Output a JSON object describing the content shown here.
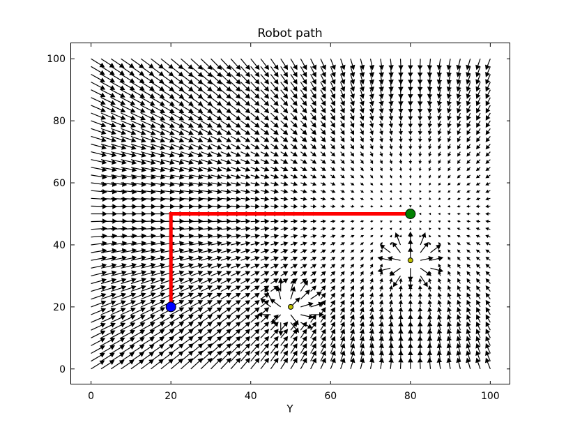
{
  "chart_data": {
    "type": "quiver",
    "title": "Robot path",
    "xlabel": "Y",
    "ylabel": "",
    "xlim": [
      -5,
      105
    ],
    "ylim": [
      -5,
      105
    ],
    "xticks": [
      "0",
      "20",
      "40",
      "60",
      "80",
      "100"
    ],
    "yticks": [
      "0",
      "20",
      "40",
      "60",
      "80",
      "100"
    ],
    "grid": false,
    "legend": "none",
    "vector_field": {
      "grid_x": {
        "start": 0,
        "stop": 100,
        "step": 2.5
      },
      "grid_y": {
        "start": 0,
        "stop": 100,
        "step": 2.5
      },
      "goal": [
        80,
        50
      ],
      "obstacles": [
        {
          "center": [
            50,
            20
          ],
          "radius": 6
        },
        {
          "center": [
            80,
            35
          ],
          "radius": 6
        }
      ],
      "color": "#000000"
    },
    "path": {
      "points": [
        [
          20,
          20
        ],
        [
          20,
          50
        ],
        [
          80,
          50
        ]
      ],
      "color": "#ff0000"
    },
    "markers": [
      {
        "name": "start",
        "x": 20,
        "y": 20,
        "color": "#0000ff"
      },
      {
        "name": "goal",
        "x": 80,
        "y": 50,
        "color": "#008000"
      },
      {
        "name": "obstacle-1",
        "x": 50,
        "y": 20,
        "color": "#bfbf00"
      },
      {
        "name": "obstacle-2",
        "x": 80,
        "y": 35,
        "color": "#bfbf00"
      }
    ]
  }
}
